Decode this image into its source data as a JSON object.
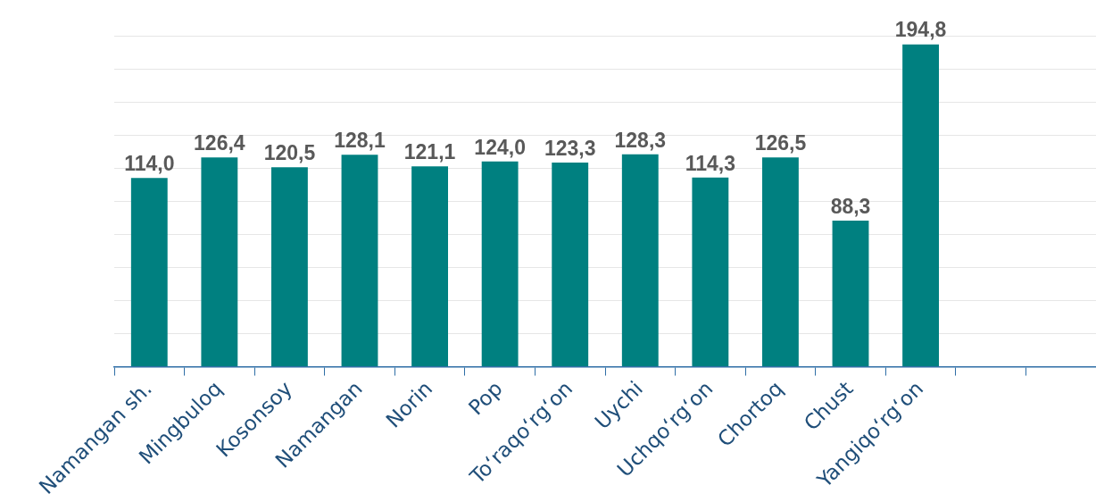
{
  "chart_data": {
    "type": "bar",
    "categories": [
      "Namangan sh.",
      "Mingbuloq",
      "Kosonsoy",
      "Namangan",
      "Norin",
      "Pop",
      "To‘raqo‘rg‘on",
      "Uychi",
      "Uchqo‘rg‘on",
      "Chortoq",
      "Chust",
      "Yangiqo‘rg‘on",
      null,
      null
    ],
    "values": [
      114.0,
      126.4,
      120.5,
      128.1,
      121.1,
      124.0,
      123.3,
      128.3,
      114.3,
      126.5,
      88.3,
      194.8,
      null,
      null
    ],
    "value_labels": [
      "114,0",
      "126,4",
      "120,5",
      "128,1",
      "121,1",
      "124,0",
      "123,3",
      "128,3",
      "114,3",
      "126,5",
      "88,3",
      "194,8",
      null,
      null
    ],
    "color": "#008080",
    "ylim": [
      0,
      200
    ],
    "yticks": [
      {
        "value": 0,
        "label": null
      },
      {
        "value": 20,
        "label": null
      },
      {
        "value": 40,
        "label": null
      },
      {
        "value": 60,
        "label": null
      },
      {
        "value": 80,
        "label": null
      },
      {
        "value": 100,
        "label": null
      },
      {
        "value": 120,
        "label": null
      },
      {
        "value": 140,
        "label": null
      },
      {
        "value": 160,
        "label": null
      },
      {
        "value": 180,
        "label": null
      },
      {
        "value": 200,
        "label": null
      }
    ],
    "tick_labels": "x",
    "grid": "y",
    "legend": false
  }
}
